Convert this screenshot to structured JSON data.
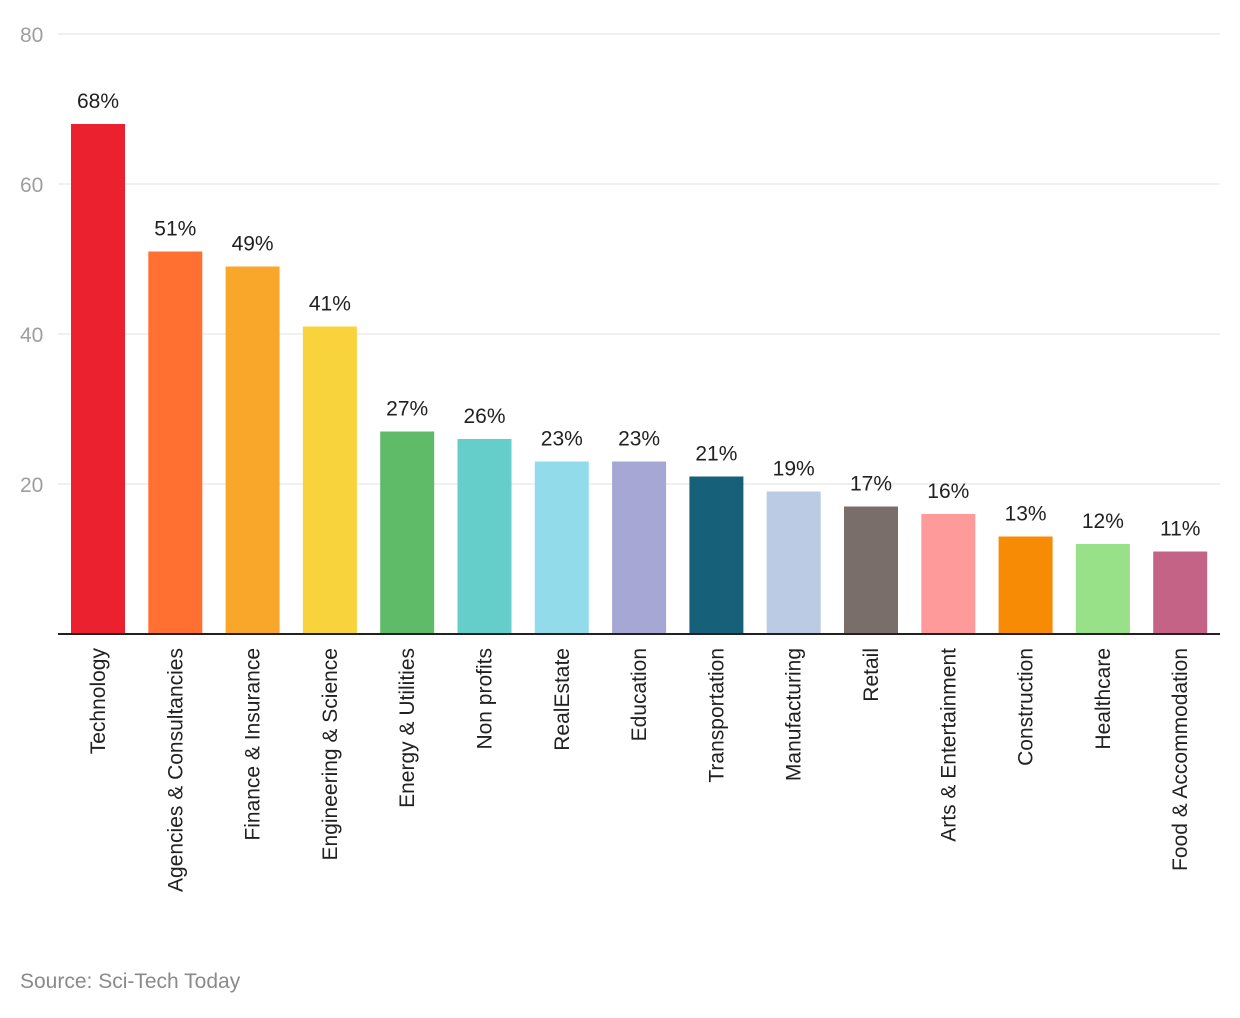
{
  "chart_data": {
    "type": "bar",
    "categories": [
      "Technology",
      "Agencies & Consultancies",
      "Finance & Insurance",
      "Engineering & Science",
      "Energy & Utilities",
      "Non profits",
      "RealEstate",
      "Education",
      "Transportation",
      "Manufacturing",
      "Retail",
      "Arts & Entertainment",
      "Construction",
      "Healthcare",
      "Food & Accommodation"
    ],
    "values": [
      68,
      51,
      49,
      41,
      27,
      26,
      23,
      23,
      21,
      19,
      17,
      16,
      13,
      12,
      11
    ],
    "value_labels": [
      "68%",
      "51%",
      "49%",
      "41%",
      "27%",
      "26%",
      "23%",
      "23%",
      "21%",
      "19%",
      "17%",
      "16%",
      "13%",
      "12%",
      "11%"
    ],
    "colors": [
      "#eb212f",
      "#ff7031",
      "#f9a72b",
      "#f9d33b",
      "#60bb69",
      "#65cdca",
      "#92dbea",
      "#a6a7d5",
      "#17607a",
      "#bccbe4",
      "#7a6e6b",
      "#fe9b9a",
      "#f88b06",
      "#98e188",
      "#c56386"
    ],
    "ylim": [
      0,
      80
    ],
    "yticks": [
      20,
      40,
      60,
      80
    ],
    "grid": true,
    "title": "",
    "xlabel": "",
    "ylabel": ""
  },
  "source": "Source: Sci-Tech Today"
}
